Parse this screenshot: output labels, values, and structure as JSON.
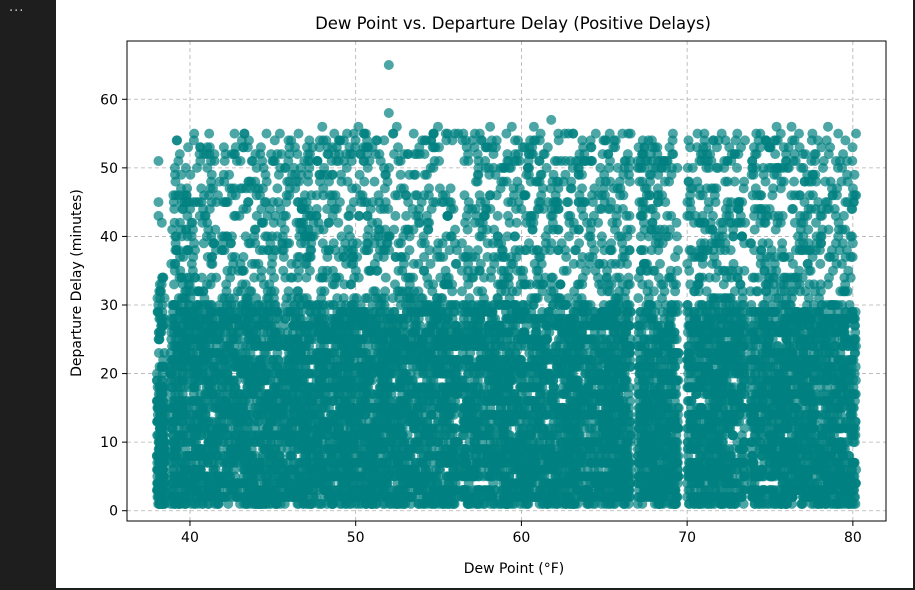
{
  "toolbar": {
    "more_label": "···"
  },
  "chart_data": {
    "type": "scatter",
    "title": "Dew Point vs. Departure Delay (Positive Delays)",
    "xlabel": "Dew Point (°F)",
    "ylabel": "Departure Delay (minutes)",
    "xlim": [
      36.2,
      82.0
    ],
    "ylim": [
      -1.5,
      68.5
    ],
    "xticks": [
      40,
      50,
      60,
      70,
      80
    ],
    "yticks": [
      0,
      10,
      20,
      30,
      40,
      50,
      60
    ],
    "grid": true,
    "marker_color": "#008080",
    "marker_alpha": 0.7,
    "x_clusters": [
      {
        "x_range": [
          38.0,
          38.5
        ],
        "y_range": [
          1,
          34
        ]
      },
      {
        "x_range": [
          38.8,
          47.5
        ],
        "y_range": [
          1,
          55
        ]
      },
      {
        "x_range": [
          47.6,
          56.2
        ],
        "y_range": [
          1,
          56
        ]
      },
      {
        "x_range": [
          56.4,
          64.5
        ],
        "y_range": [
          1,
          56
        ]
      },
      {
        "x_range": [
          64.6,
          66.6
        ],
        "y_range": [
          1,
          55
        ]
      },
      {
        "x_range": [
          67.0,
          69.5
        ],
        "y_range": [
          1,
          55
        ]
      },
      {
        "x_range": [
          70.0,
          73.5
        ],
        "y_range": [
          1,
          55
        ]
      },
      {
        "x_range": [
          73.8,
          80.2
        ],
        "y_range": [
          1,
          56
        ]
      }
    ],
    "notable_points": [
      {
        "x": 52.0,
        "y": 65
      },
      {
        "x": 52.0,
        "y": 58
      },
      {
        "x": 61.8,
        "y": 57
      },
      {
        "x": 76.3,
        "y": 56
      },
      {
        "x": 78.5,
        "y": 56
      },
      {
        "x": 39.2,
        "y": 54
      },
      {
        "x": 38.1,
        "y": 51
      },
      {
        "x": 38.1,
        "y": 45
      },
      {
        "x": 38.1,
        "y": 43
      },
      {
        "x": 38.3,
        "y": 42
      }
    ]
  }
}
